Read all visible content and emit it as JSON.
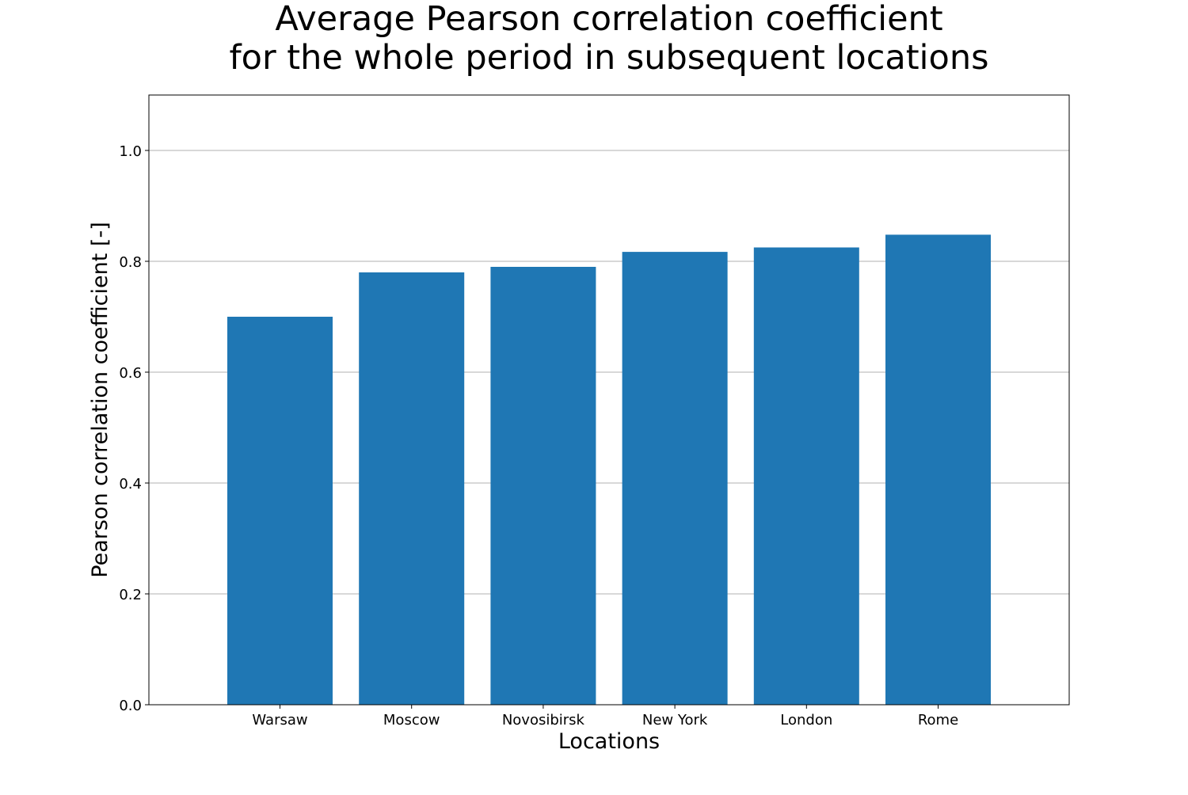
{
  "chart_data": {
    "type": "bar",
    "title_lines": [
      "Average Pearson correlation coefficient",
      "for the whole period in subsequent locations"
    ],
    "xlabel": "Locations",
    "ylabel": "Pearson correlation coefficient [-]",
    "categories": [
      "Warsaw",
      "Moscow",
      "Novosibirsk",
      "New York",
      "London",
      "Rome"
    ],
    "values": [
      0.7,
      0.78,
      0.79,
      0.817,
      0.825,
      0.848
    ],
    "ylim": [
      0,
      1.1
    ],
    "yticks": [
      0.0,
      0.2,
      0.4,
      0.6,
      0.8,
      1.0
    ],
    "ytick_labels": [
      "0.0",
      "0.2",
      "0.4",
      "0.6",
      "0.8",
      "1.0"
    ],
    "grid": "y",
    "legend": "none",
    "colors": {
      "bar": "#1f77b4",
      "grid": "#b0b0b0",
      "axes": "#000000"
    }
  }
}
